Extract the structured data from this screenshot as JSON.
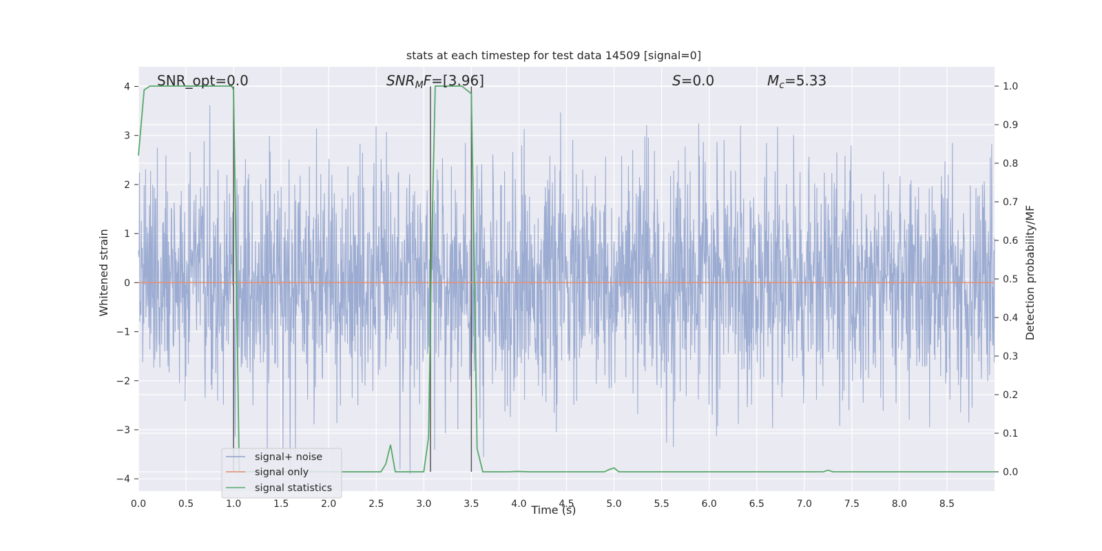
{
  "chart_data": {
    "type": "line",
    "title": "stats at each timestep for test data 14509 [signal=0]",
    "xlabel": "Time (s)",
    "ylabel": "Whitened strain",
    "y2label": "Detection probability/MF",
    "xlim": [
      0.0,
      9.0
    ],
    "ylim": [
      -4.25,
      4.4
    ],
    "y2lim": [
      -0.05,
      1.05
    ],
    "x_ticks": [
      "0.0",
      "0.5",
      "1.0",
      "1.5",
      "2.0",
      "2.5",
      "3.0",
      "3.5",
      "4.0",
      "4.5",
      "5.0",
      "5.5",
      "6.0",
      "6.5",
      "7.0",
      "7.5",
      "8.0",
      "8.5"
    ],
    "x_tick_values": [
      0.0,
      0.5,
      1.0,
      1.5,
      2.0,
      2.5,
      3.0,
      3.5,
      4.0,
      4.5,
      5.0,
      5.5,
      6.0,
      6.5,
      7.0,
      7.5,
      8.0,
      8.5
    ],
    "y_ticks": [
      "4",
      "3",
      "2",
      "1",
      "0",
      "−1",
      "−2",
      "−3",
      "−4"
    ],
    "y_tick_values": [
      4,
      3,
      2,
      1,
      0,
      -1,
      -2,
      -3,
      -4
    ],
    "y2_ticks": [
      "1.0",
      "0.9",
      "0.8",
      "0.7",
      "0.6",
      "0.5",
      "0.4",
      "0.3",
      "0.2",
      "0.1",
      "0.0"
    ],
    "y2_tick_values": [
      1.0,
      0.9,
      0.8,
      0.7,
      0.6,
      0.5,
      0.4,
      0.3,
      0.2,
      0.1,
      0.0
    ],
    "grid": true,
    "legend_position": "lower-left",
    "annotations": {
      "snr_opt": "SNR_opt=0.0",
      "snr_mf_sym": "SNR",
      "snr_mf_sub": "M",
      "snr_mf_sym2": "F",
      "snr_mf_val": "=[3.96]",
      "s_sym": "S",
      "s_val": "=0.0",
      "mc_sym": "M",
      "mc_sub": "c",
      "mc_val": "=5.33"
    },
    "vlines": [
      1.0,
      3.07,
      3.5
    ],
    "series": [
      {
        "name": "signal+ noise",
        "color": "#8da0cb",
        "description_note": "white-noise whitened strain, roughly within ±4",
        "envelope_max": 3.9,
        "envelope_min": -3.9
      },
      {
        "name": "signal only",
        "color": "#e5906f",
        "values_constant": 0.0
      },
      {
        "name": "signal statistics",
        "color": "#55a868",
        "axis": "right",
        "x": [
          0.0,
          0.06,
          0.12,
          0.3,
          0.6,
          0.9,
          0.98,
          1.0,
          1.03,
          1.06,
          1.1,
          2.55,
          2.6,
          2.65,
          2.7,
          2.75,
          3.0,
          3.05,
          3.08,
          3.12,
          3.16,
          3.4,
          3.5,
          3.53,
          3.56,
          3.62,
          3.9,
          3.98,
          4.1,
          4.9,
          4.95,
          5.0,
          5.05,
          5.15,
          7.2,
          7.25,
          7.3,
          7.5,
          9.0
        ],
        "y": [
          0.82,
          0.99,
          1.0,
          1.0,
          1.0,
          1.0,
          1.0,
          0.99,
          0.5,
          0.0,
          0.0,
          0.0,
          0.02,
          0.07,
          0.0,
          0.0,
          0.0,
          0.09,
          0.55,
          1.0,
          1.0,
          1.0,
          0.98,
          0.55,
          0.06,
          0.0,
          0.0,
          0.001,
          0.0,
          0.0,
          0.006,
          0.01,
          0.0,
          0.0,
          0.0,
          0.004,
          0.0,
          0.0,
          0.0
        ]
      }
    ]
  },
  "legend": {
    "items": [
      {
        "label": "signal+ noise",
        "color": "#8da0cb"
      },
      {
        "label": "signal only",
        "color": "#e5906f"
      },
      {
        "label": "signal statistics",
        "color": "#55a868"
      }
    ]
  },
  "colors": {
    "plot_bg": "#eaeaf2",
    "grid": "#ffffff",
    "vline": "#555555"
  }
}
